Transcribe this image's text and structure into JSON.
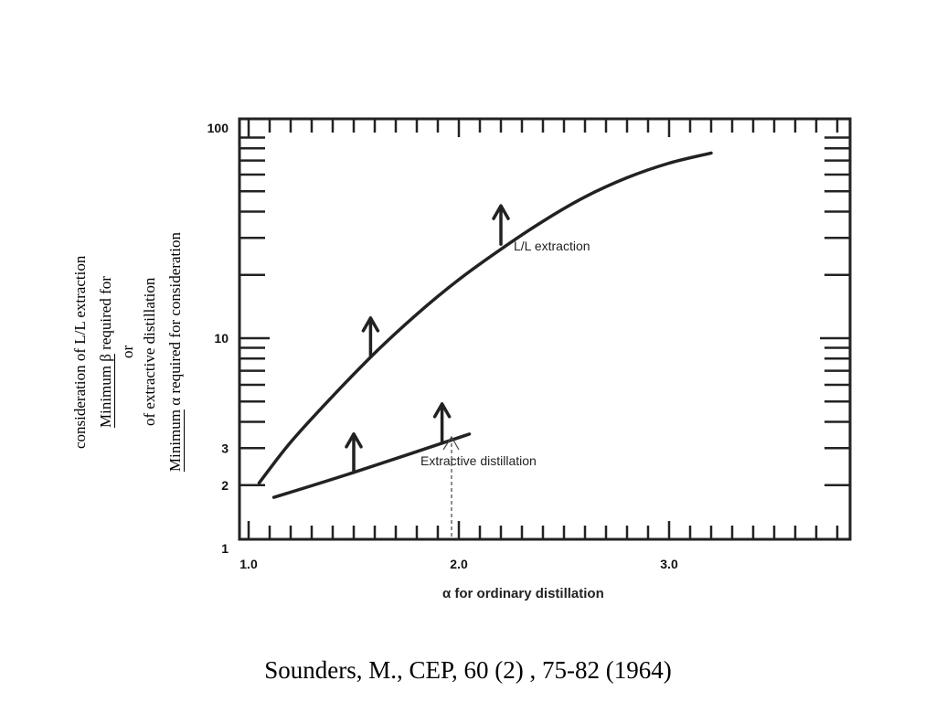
{
  "chart_data": {
    "type": "line",
    "xlabel": "α for ordinary distillation",
    "x_scale": "linear",
    "y_scale": "log",
    "xlim": [
      1.0,
      3.85
    ],
    "ylim": [
      1,
      100
    ],
    "x_ticks": [
      "1.0",
      "2.0",
      "3.0"
    ],
    "y_ticks": [
      "100",
      "10",
      "1"
    ],
    "y_minor_labels": [
      "3",
      "2"
    ],
    "series": [
      {
        "name": "L/L extraction",
        "x": [
          1.05,
          1.2,
          1.4,
          1.6,
          1.8,
          2.0,
          2.2,
          2.4,
          2.6,
          2.8,
          3.0,
          3.2
        ],
        "y": [
          2.05,
          3.2,
          5.3,
          8.5,
          13.0,
          19.0,
          26.5,
          36.0,
          47.0,
          58.0,
          68.0,
          76.0
        ]
      },
      {
        "name": "Extractive distillation",
        "x": [
          1.12,
          1.5,
          2.05
        ],
        "y": [
          1.75,
          2.3,
          3.5
        ]
      }
    ],
    "arrows": [
      {
        "x": 1.58,
        "y": 8.2
      },
      {
        "x": 2.2,
        "y": 28.0
      },
      {
        "x": 1.5,
        "y": 2.3
      },
      {
        "x": 1.92,
        "y": 3.2
      }
    ]
  },
  "ylabel": {
    "line1": "Minimum α required for consideration",
    "line2": "of extractive distillation",
    "line3": "or",
    "line4_underlined": "Minimum β",
    "line4_rest": " required for",
    "line5": "consideration of L/L extraction"
  },
  "citation": "Sounders, M., CEP, 60 (2) , 75-82 (1964)"
}
